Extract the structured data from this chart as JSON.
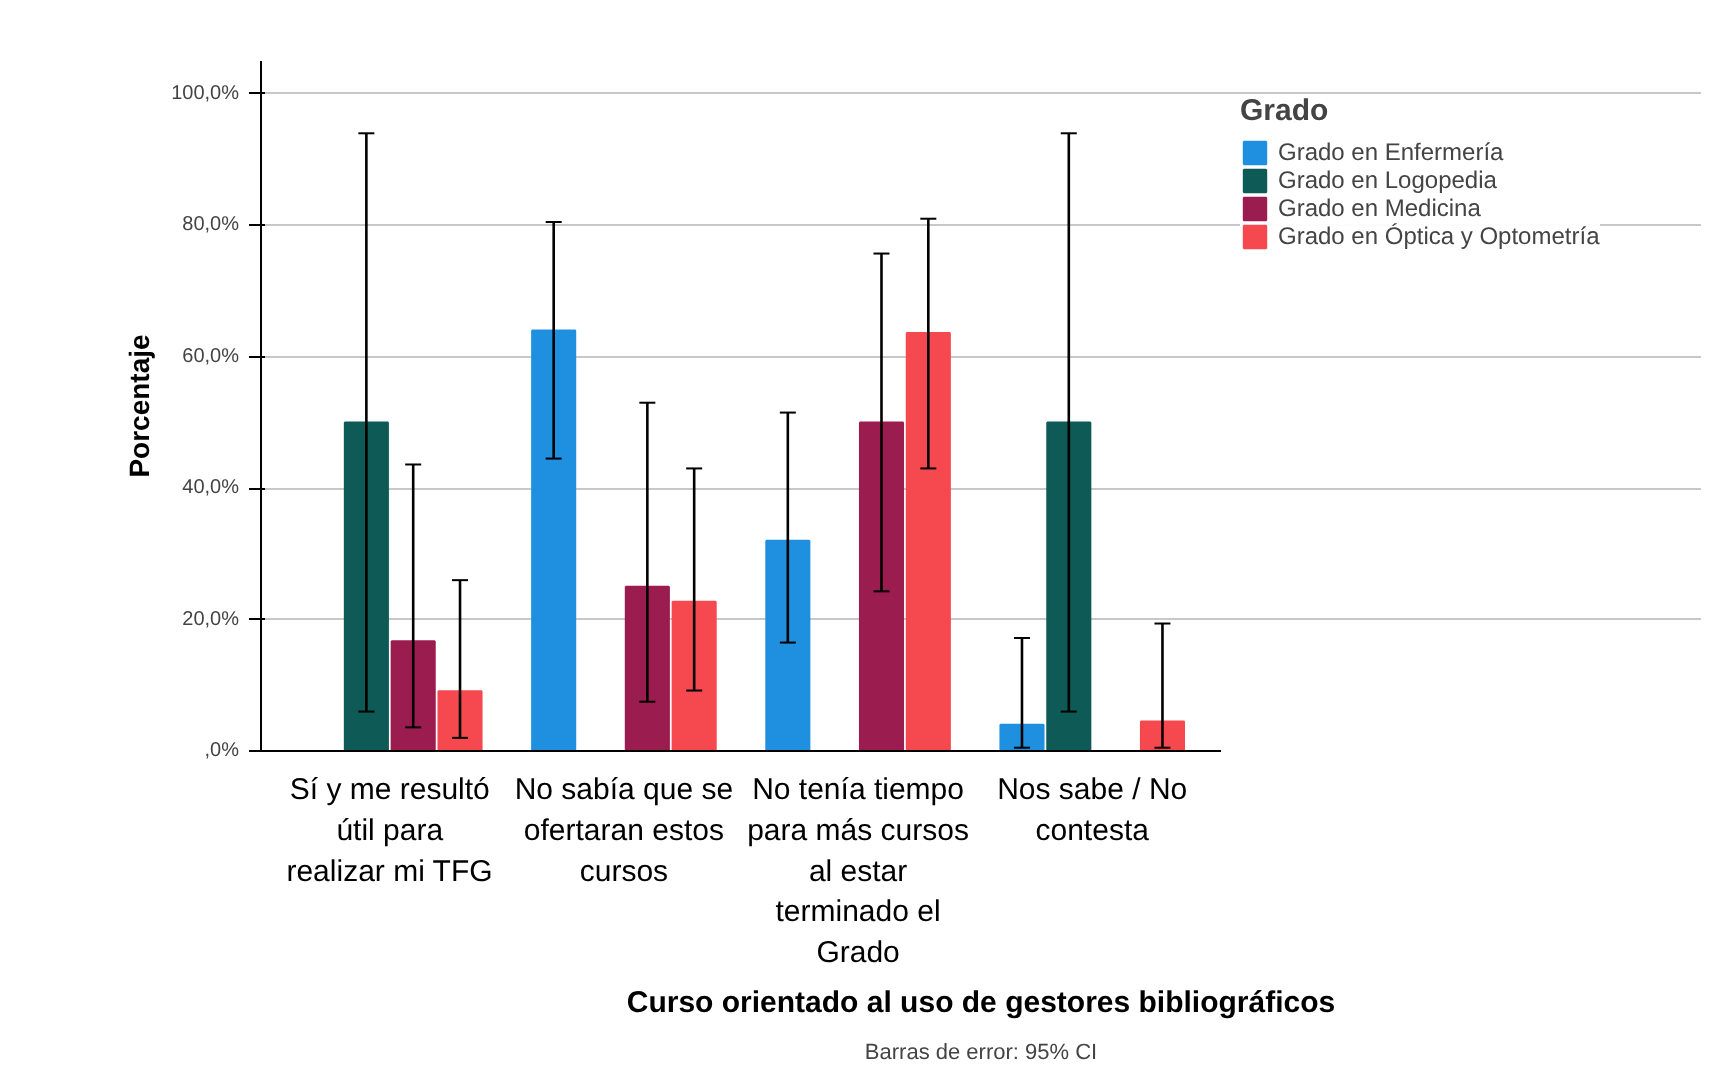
{
  "chart_data": {
    "type": "bar",
    "xlabel": "Curso orientado al uso de gestores bibliográficos",
    "ylabel": "Porcentaje",
    "legend_title": "Grado",
    "annotations": [
      "Barras de error: 95% CI"
    ],
    "categories": [
      "Sí y me resultó útil para realizar mi TFG",
      "No sabía que se ofertaran estos cursos",
      "No tenía tiempo para más cursos al estar terminado el Grado",
      "Nos sabe / No contesta"
    ],
    "series": [
      {
        "name": "Grado en Enfermería",
        "color": "#1f8fe0",
        "values": [
          0,
          64,
          32,
          4
        ],
        "errors": [
          null,
          [
            44.5,
            80.5
          ],
          [
            16.5,
            51.5
          ],
          [
            0.5,
            17.2
          ]
        ]
      },
      {
        "name": "Grado en Logopedia",
        "color": "#0d5a56",
        "values": [
          50,
          0,
          0,
          50
        ],
        "errors": [
          [
            6,
            94
          ],
          null,
          null,
          [
            6,
            94
          ]
        ]
      },
      {
        "name": "Grado en Medicina",
        "color": "#9b1c4f",
        "values": [
          16.7,
          25,
          50,
          0
        ],
        "errors": [
          [
            3.6,
            43.6
          ],
          [
            7.5,
            53
          ],
          [
            24.3,
            75.7
          ],
          null
        ]
      },
      {
        "name": "Grado en Óptica y Optometría",
        "color": "#f6484f",
        "values": [
          9.1,
          22.7,
          63.6,
          4.5
        ],
        "errors": [
          [
            2,
            26
          ],
          [
            9.2,
            43
          ],
          [
            43,
            81
          ],
          [
            0.5,
            19.4
          ]
        ]
      }
    ],
    "ylim": [
      0,
      105
    ],
    "yticks": [
      {
        "value": 0,
        "label": ",0%"
      },
      {
        "value": 20,
        "label": "20,0%"
      },
      {
        "value": 40,
        "label": "40,0%"
      },
      {
        "value": 60,
        "label": "60,0%"
      },
      {
        "value": 80,
        "label": "80,0%"
      },
      {
        "value": 100,
        "label": "100,0%"
      }
    ],
    "grid": "y",
    "legend": "right"
  }
}
